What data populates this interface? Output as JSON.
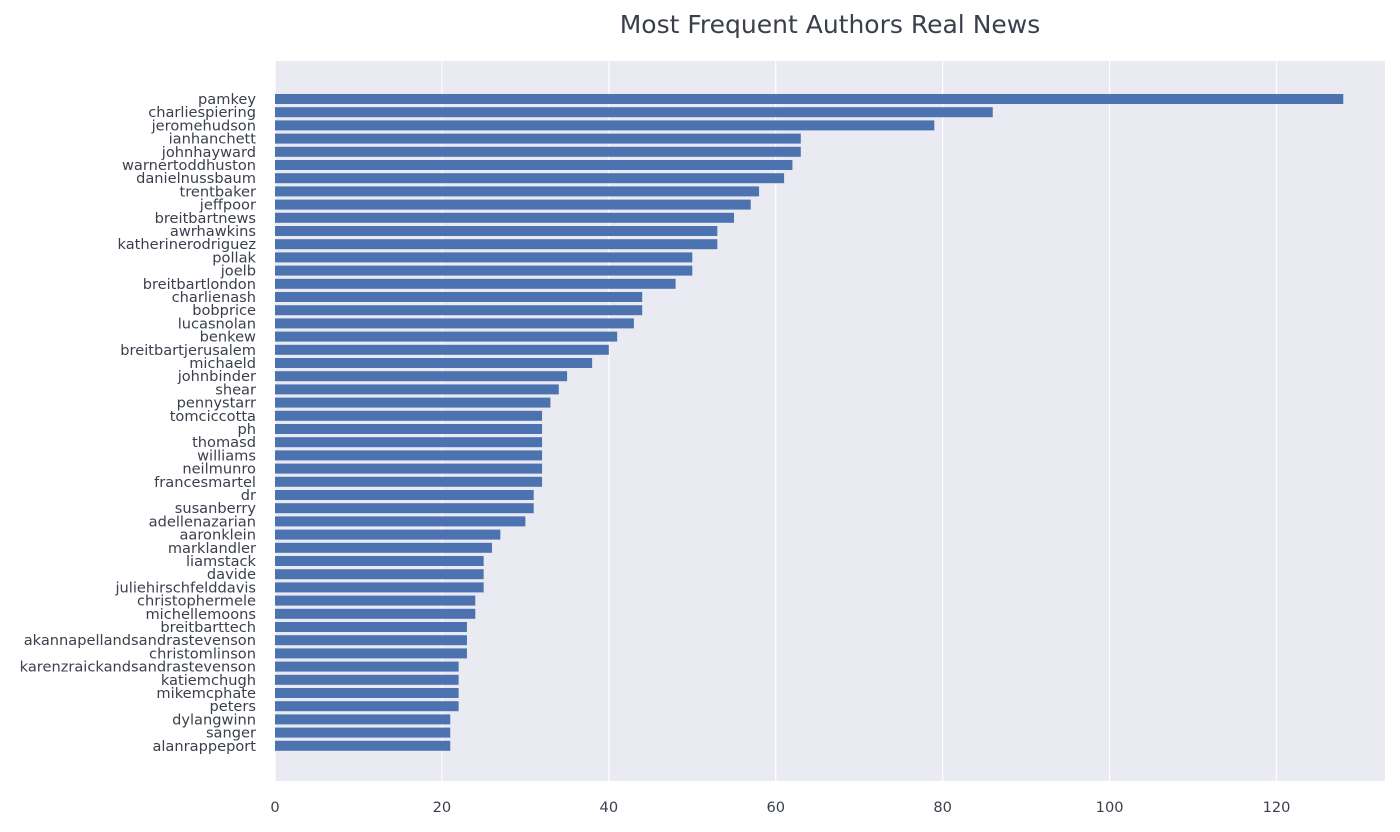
{
  "chart_data": {
    "type": "bar",
    "orientation": "horizontal",
    "title": "Most Frequent Authors Real News",
    "xlabel": "",
    "ylabel": "",
    "xlim": [
      0,
      133
    ],
    "xticks": [
      0,
      20,
      40,
      60,
      80,
      100,
      120
    ],
    "grid": true,
    "bar_color": "#4c72b0",
    "background_color": "#eaeaf2",
    "categories": [
      "pamkey",
      "charliespiering",
      "jeromehudson",
      "ianhanchett",
      "johnhayward",
      "warnertoddhuston",
      "danielnussbaum",
      "trentbaker",
      "jeffpoor",
      "breitbartnews",
      "awrhawkins",
      "katherinerodriguez",
      "pollak",
      "joelb",
      "breitbartlondon",
      "charlienash",
      "bobprice",
      "lucasnolan",
      "benkew",
      "breitbartjerusalem",
      "michaeld",
      "johnbinder",
      "shear",
      "pennystarr",
      "tomciccotta",
      "ph",
      "thomasd",
      "williams",
      "neilmunro",
      "francesmartel",
      "dr",
      "susanberry",
      "adellenazarian",
      "aaronklein",
      "marklandler",
      "liamstack",
      "davide",
      "juliehirschfelddavis",
      "christophermele",
      "michellemoons",
      "breitbarttech",
      "akannapellandsandrastevenson",
      "christomlinson",
      "karenzraickandsandrastevenson",
      "katiemchugh",
      "mikemcphate",
      "peters",
      "dylangwinn",
      "sanger",
      "alanrappeport"
    ],
    "values": [
      128,
      86,
      79,
      63,
      63,
      62,
      61,
      58,
      57,
      55,
      53,
      53,
      50,
      50,
      48,
      44,
      44,
      43,
      41,
      40,
      38,
      35,
      34,
      33,
      32,
      32,
      32,
      32,
      32,
      32,
      31,
      31,
      30,
      27,
      26,
      25,
      25,
      25,
      24,
      24,
      23,
      23,
      23,
      22,
      22,
      22,
      22,
      21,
      21,
      21
    ]
  }
}
